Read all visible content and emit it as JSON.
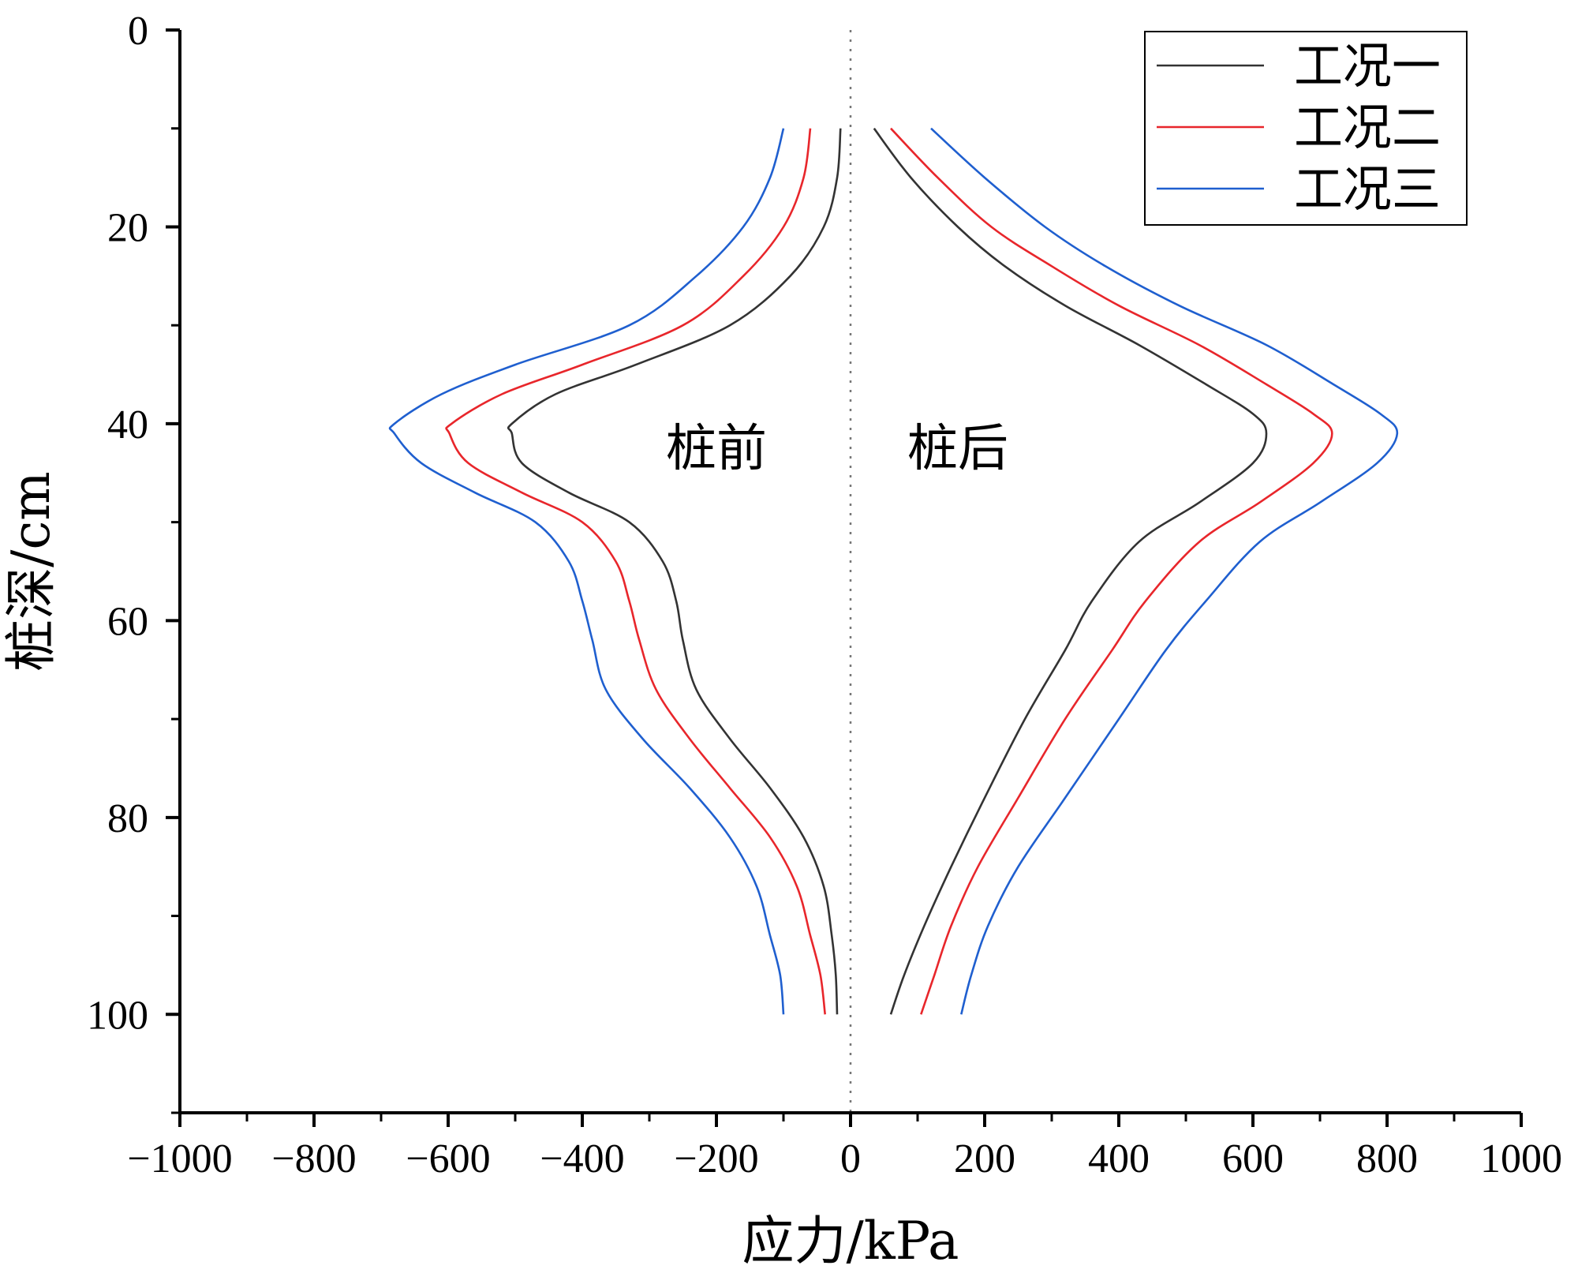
{
  "chart_data": {
    "type": "line",
    "xlabel": "应力/kPa",
    "ylabel": "桩深/cm",
    "xlim": [
      -1000,
      1000
    ],
    "ylim": [
      0,
      110
    ],
    "y_inverted": true,
    "x_ticks": [
      -1000,
      -800,
      -600,
      -400,
      -200,
      0,
      200,
      400,
      600,
      800,
      1000
    ],
    "x_tick_labels": [
      "−1000",
      "−800",
      "−600",
      "−400",
      "−200",
      "0",
      "200",
      "400",
      "600",
      "800",
      "1000"
    ],
    "y_ticks": [
      0,
      20,
      40,
      60,
      80,
      100
    ],
    "y_tick_labels": [
      "0",
      "20",
      "40",
      "60",
      "80",
      "100"
    ],
    "grid": false,
    "zero_line": "dotted vertical at x=0",
    "legend_position": "top-right",
    "annotations": [
      {
        "text": "桩前",
        "x": -200,
        "y": 42.5
      },
      {
        "text": "桩后",
        "x": 160,
        "y": 42.5
      }
    ],
    "series": [
      {
        "name": "工况一",
        "color": "#333333",
        "segments": [
          {
            "side": "front",
            "points": [
              [
                -15,
                10
              ],
              [
                -20,
                15
              ],
              [
                -40,
                20
              ],
              [
                -90,
                25
              ],
              [
                -180,
                30
              ],
              [
                -320,
                34
              ],
              [
                -440,
                37
              ],
              [
                -505,
                40
              ],
              [
                -505,
                41
              ],
              [
                -490,
                44
              ],
              [
                -420,
                47
              ],
              [
                -330,
                50
              ],
              [
                -280,
                54
              ],
              [
                -260,
                58
              ],
              [
                -250,
                62
              ],
              [
                -230,
                67
              ],
              [
                -180,
                72
              ],
              [
                -120,
                77
              ],
              [
                -70,
                82
              ],
              [
                -40,
                87
              ],
              [
                -28,
                92
              ],
              [
                -22,
                96
              ],
              [
                -20,
                100
              ]
            ]
          },
          {
            "side": "back",
            "points": [
              [
                35,
                10
              ],
              [
                90,
                15
              ],
              [
                160,
                20
              ],
              [
                230,
                24
              ],
              [
                320,
                28
              ],
              [
                430,
                32
              ],
              [
                530,
                36
              ],
              [
                600,
                39
              ],
              [
                620,
                41
              ],
              [
                600,
                44
              ],
              [
                520,
                48
              ],
              [
                430,
                52
              ],
              [
                360,
                58
              ],
              [
                320,
                63
              ],
              [
                260,
                70
              ],
              [
                200,
                78
              ],
              [
                150,
                85
              ],
              [
                110,
                91
              ],
              [
                80,
                96
              ],
              [
                60,
                100
              ]
            ]
          }
        ]
      },
      {
        "name": "工况二",
        "color": "#e8262b",
        "segments": [
          {
            "side": "front",
            "points": [
              [
                -60,
                10
              ],
              [
                -70,
                15
              ],
              [
                -100,
                20
              ],
              [
                -160,
                25
              ],
              [
                -250,
                30
              ],
              [
                -400,
                34
              ],
              [
                -520,
                37
              ],
              [
                -595,
                40
              ],
              [
                -598,
                41
              ],
              [
                -570,
                44
              ],
              [
                -490,
                47
              ],
              [
                -400,
                50
              ],
              [
                -350,
                54
              ],
              [
                -330,
                58
              ],
              [
                -315,
                62
              ],
              [
                -290,
                67
              ],
              [
                -240,
                72
              ],
              [
                -180,
                77
              ],
              [
                -120,
                82
              ],
              [
                -80,
                87
              ],
              [
                -60,
                92
              ],
              [
                -45,
                96
              ],
              [
                -38,
                100
              ]
            ]
          },
          {
            "side": "back",
            "points": [
              [
                60,
                10
              ],
              [
                130,
                15
              ],
              [
                210,
                20
              ],
              [
                300,
                24
              ],
              [
                400,
                28
              ],
              [
                520,
                32
              ],
              [
                620,
                36
              ],
              [
                690,
                39
              ],
              [
                718,
                41
              ],
              [
                690,
                44
              ],
              [
                610,
                48
              ],
              [
                520,
                52
              ],
              [
                440,
                58
              ],
              [
                390,
                63
              ],
              [
                320,
                70
              ],
              [
                250,
                78
              ],
              [
                190,
                85
              ],
              [
                150,
                91
              ],
              [
                125,
                96
              ],
              [
                105,
                100
              ]
            ]
          }
        ]
      },
      {
        "name": "工况三",
        "color": "#1f5fcf",
        "segments": [
          {
            "side": "front",
            "points": [
              [
                -100,
                10
              ],
              [
                -120,
                15
              ],
              [
                -160,
                20
              ],
              [
                -230,
                25
              ],
              [
                -330,
                30
              ],
              [
                -500,
                34
              ],
              [
                -610,
                37
              ],
              [
                -680,
                40
              ],
              [
                -680,
                41
              ],
              [
                -640,
                44
              ],
              [
                -560,
                47
              ],
              [
                -470,
                50
              ],
              [
                -420,
                54
              ],
              [
                -400,
                58
              ],
              [
                -385,
                62
              ],
              [
                -365,
                67
              ],
              [
                -310,
                72
              ],
              [
                -240,
                77
              ],
              [
                -180,
                82
              ],
              [
                -140,
                87
              ],
              [
                -120,
                92
              ],
              [
                -105,
                96
              ],
              [
                -100,
                100
              ]
            ]
          },
          {
            "side": "back",
            "points": [
              [
                120,
                10
              ],
              [
                200,
                15
              ],
              [
                290,
                20
              ],
              [
                380,
                24
              ],
              [
                490,
                28
              ],
              [
                620,
                32
              ],
              [
                720,
                36
              ],
              [
                790,
                39
              ],
              [
                815,
                41
              ],
              [
                785,
                44
              ],
              [
                700,
                48
              ],
              [
                610,
                52
              ],
              [
                530,
                58
              ],
              [
                470,
                63
              ],
              [
                400,
                70
              ],
              [
                320,
                78
              ],
              [
                250,
                85
              ],
              [
                205,
                91
              ],
              [
                180,
                96
              ],
              [
                165,
                100
              ]
            ]
          }
        ]
      }
    ]
  }
}
